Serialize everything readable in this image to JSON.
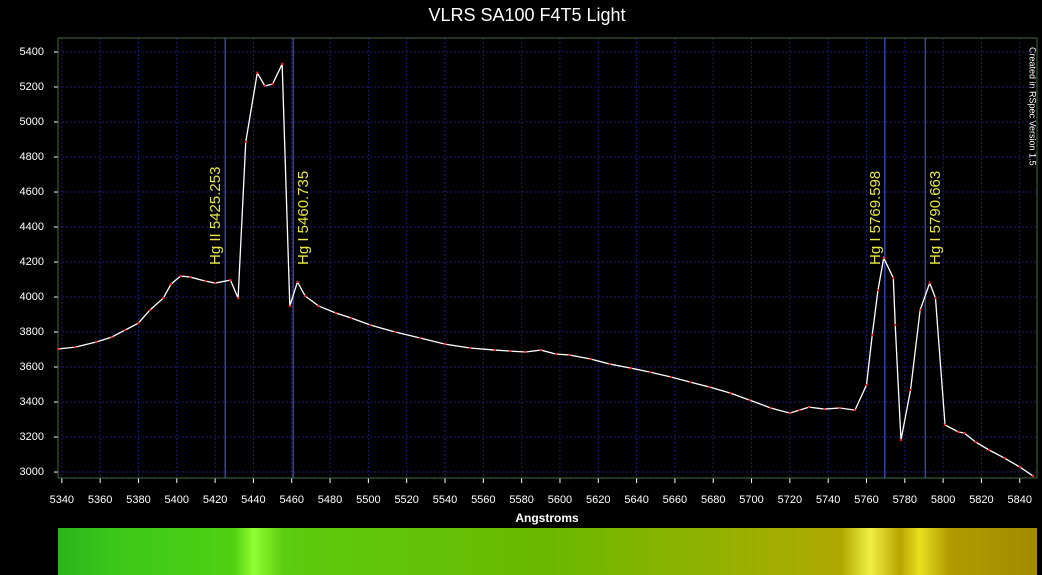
{
  "chart_data": {
    "type": "line",
    "title": "VLRS SA100 F4T5 Light",
    "x_label": "Angstroms",
    "side_note": "Created in RSpec Version 1.5",
    "x": [
      5338,
      5347,
      5358,
      5366,
      5373,
      5380,
      5386,
      5393,
      5397,
      5402,
      5407,
      5415,
      5420,
      5428,
      5432,
      5436,
      5442,
      5446,
      5450,
      5455,
      5459,
      5463,
      5467,
      5474,
      5483,
      5491,
      5501,
      5514,
      5527,
      5540,
      5553,
      5566,
      5574,
      5582,
      5590,
      5598,
      5605,
      5616,
      5626,
      5637,
      5647,
      5658,
      5668,
      5678,
      5689,
      5699,
      5710,
      5720,
      5725,
      5730,
      5738,
      5746,
      5754,
      5760,
      5763,
      5766,
      5769,
      5774,
      5775,
      5778,
      5783,
      5788,
      5793,
      5796,
      5801,
      5808,
      5811,
      5817,
      5824,
      5832,
      5840,
      5847
    ],
    "series": [
      {
        "color": "#ffffff",
        "marker_color": "#ff2020",
        "values": [
          3703,
          3714,
          3743,
          3771,
          3811,
          3851,
          3926,
          3994,
          4074,
          4120,
          4114,
          4091,
          4080,
          4097,
          3994,
          4886,
          5280,
          5206,
          5217,
          5331,
          3949,
          4086,
          4006,
          3949,
          3909,
          3880,
          3840,
          3800,
          3766,
          3731,
          3709,
          3697,
          3691,
          3686,
          3697,
          3674,
          3669,
          3646,
          3617,
          3594,
          3571,
          3543,
          3514,
          3486,
          3451,
          3411,
          3366,
          3337,
          3354,
          3371,
          3360,
          3366,
          3354,
          3497,
          3783,
          4040,
          4223,
          4109,
          3840,
          3183,
          3469,
          3926,
          4080,
          3994,
          3269,
          3229,
          3223,
          3171,
          3126,
          3080,
          3029,
          2977
        ]
      }
    ],
    "annotations": [
      {
        "x": 5425.253,
        "label": "Hg II 5425.253"
      },
      {
        "x": 5460.735,
        "label": "Hg I 5460.735"
      },
      {
        "x": 5769.598,
        "label": "Hg I 5769.598"
      },
      {
        "x": 5790.663,
        "label": "Hg I 5790.663"
      }
    ],
    "annotation_color": "#e8e840",
    "annotation_line_color": "#5060ff",
    "xlim": [
      5338,
      5849
    ],
    "ylim": [
      2966,
      5480
    ],
    "xticks": [
      5340,
      5360,
      5380,
      5400,
      5420,
      5440,
      5460,
      5480,
      5500,
      5520,
      5540,
      5560,
      5580,
      5600,
      5620,
      5640,
      5660,
      5680,
      5700,
      5720,
      5740,
      5760,
      5780,
      5800,
      5820,
      5840
    ],
    "yticks": [
      3000,
      3200,
      3400,
      3600,
      3800,
      4000,
      4200,
      4400,
      4600,
      4800,
      5000,
      5200,
      5400
    ],
    "grid": true
  }
}
